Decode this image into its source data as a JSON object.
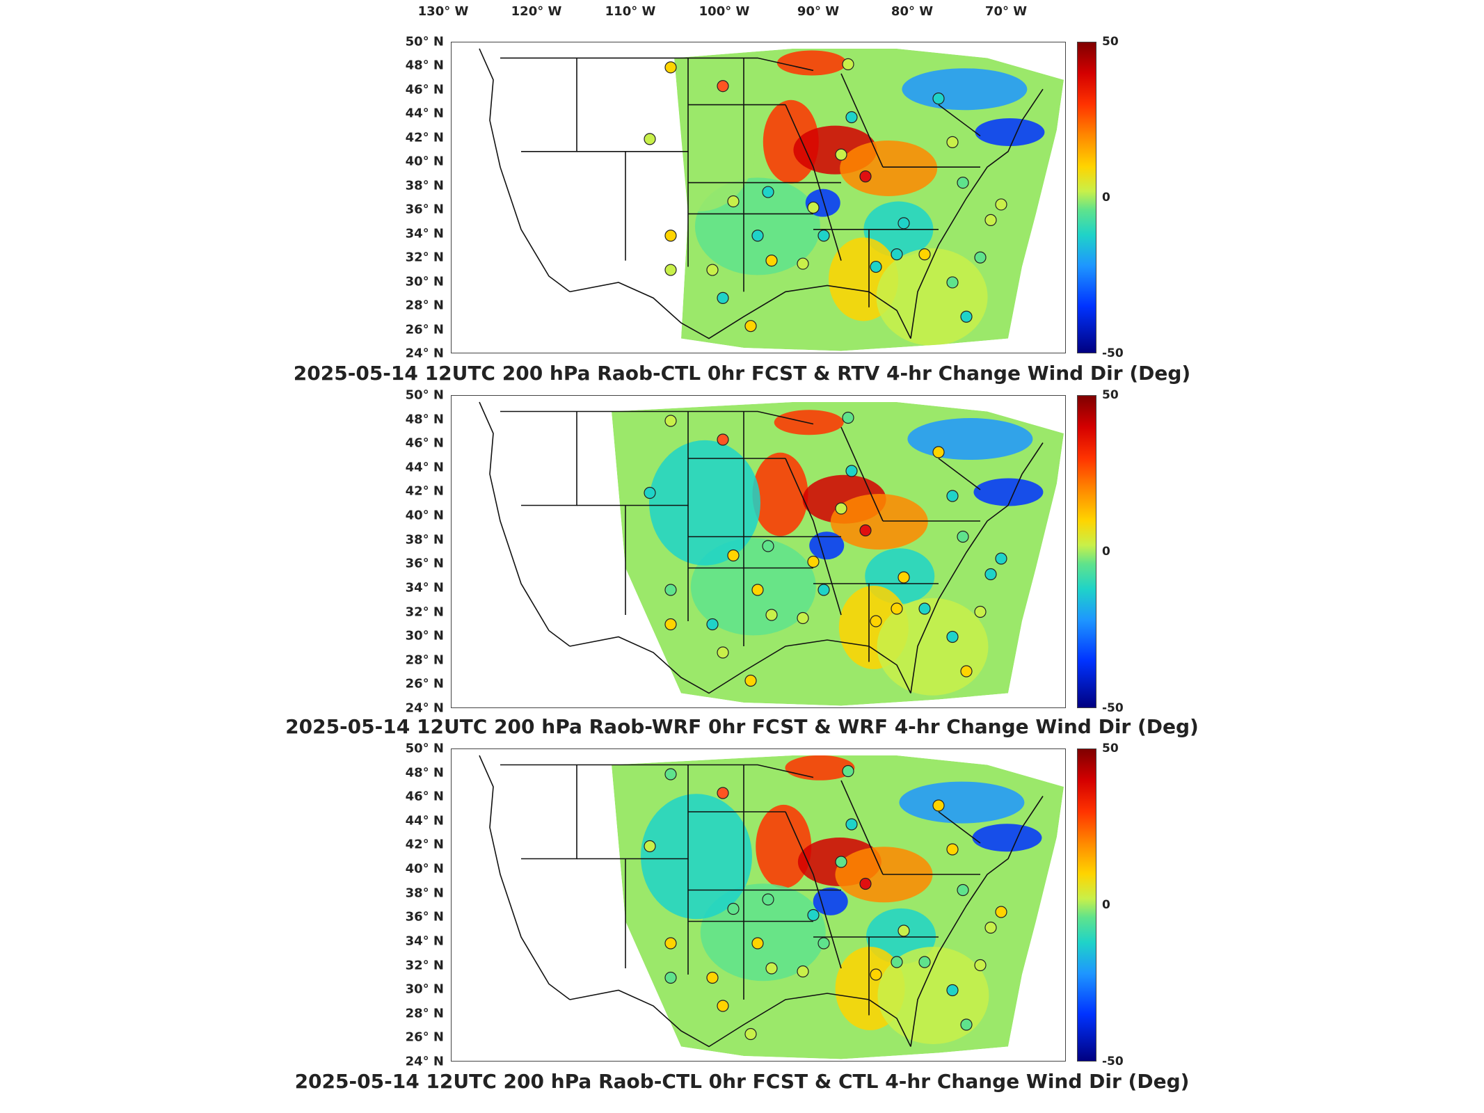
{
  "longitude_labels": [
    "130° W",
    "120° W",
    "110° W",
    "100° W",
    "90° W",
    "80° W",
    "70° W"
  ],
  "latitude_labels": [
    "50° N",
    "48° N",
    "46° N",
    "44° N",
    "42° N",
    "40° N",
    "38° N",
    "36° N",
    "34° N",
    "32° N",
    "30° N",
    "28° N",
    "26° N",
    "24° N"
  ],
  "colorbar": {
    "max": "50",
    "mid": "0",
    "min": "-50"
  },
  "panels": [
    {
      "title": "2025-05-14 12UTC 200 hPa Raob-CTL 0hr FCST & RTV 4-hr Change Wind Dir (Deg)"
    },
    {
      "title": "2025-05-14 12UTC 200 hPa Raob-WRF 0hr FCST & WRF 4-hr Change Wind Dir (Deg)"
    },
    {
      "title": "2025-05-14 12UTC 200 hPa Raob-CTL 0hr FCST & CTL 4-hr Change Wind Dir (Deg)"
    }
  ],
  "colors": {
    "background": "#ffffff",
    "border": "#444444",
    "high": "#7f0000",
    "zero": "#5fe38c",
    "low": "#000080"
  }
}
